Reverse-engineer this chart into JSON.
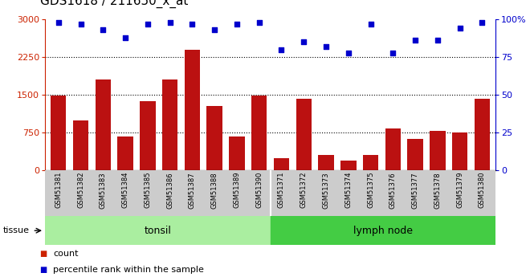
{
  "title": "GDS1618 / 211650_x_at",
  "samples": [
    "GSM51381",
    "GSM51382",
    "GSM51383",
    "GSM51384",
    "GSM51385",
    "GSM51386",
    "GSM51387",
    "GSM51388",
    "GSM51389",
    "GSM51390",
    "GSM51371",
    "GSM51372",
    "GSM51373",
    "GSM51374",
    "GSM51375",
    "GSM51376",
    "GSM51377",
    "GSM51378",
    "GSM51379",
    "GSM51380"
  ],
  "counts": [
    1480,
    1000,
    1800,
    680,
    1380,
    1800,
    2400,
    1280,
    680,
    1490,
    250,
    1430,
    310,
    200,
    300,
    830,
    630,
    780,
    750,
    1420
  ],
  "percentiles": [
    98,
    97,
    93,
    88,
    97,
    98,
    97,
    93,
    97,
    98,
    80,
    85,
    82,
    78,
    97,
    78,
    86,
    86,
    94,
    98
  ],
  "tonsil_count": 10,
  "lymph_count": 10,
  "tonsil_label": "tonsil",
  "lymph_label": "lymph node",
  "tissue_label": "tissue",
  "ylim_left": [
    0,
    3000
  ],
  "ylim_right": [
    0,
    100
  ],
  "yticks_left": [
    0,
    750,
    1500,
    2250,
    3000
  ],
  "yticks_right": [
    0,
    25,
    50,
    75,
    100
  ],
  "bar_color": "#bb1111",
  "dot_color": "#0000cc",
  "bg_color": "#cccccc",
  "tonsil_color": "#aaeea0",
  "lymph_color": "#44cc44",
  "legend_count_label": "count",
  "legend_pct_label": "percentile rank within the sample",
  "title_fontsize": 11,
  "right_axis_color": "#0000cc",
  "bar_color_red": "#cc2200"
}
